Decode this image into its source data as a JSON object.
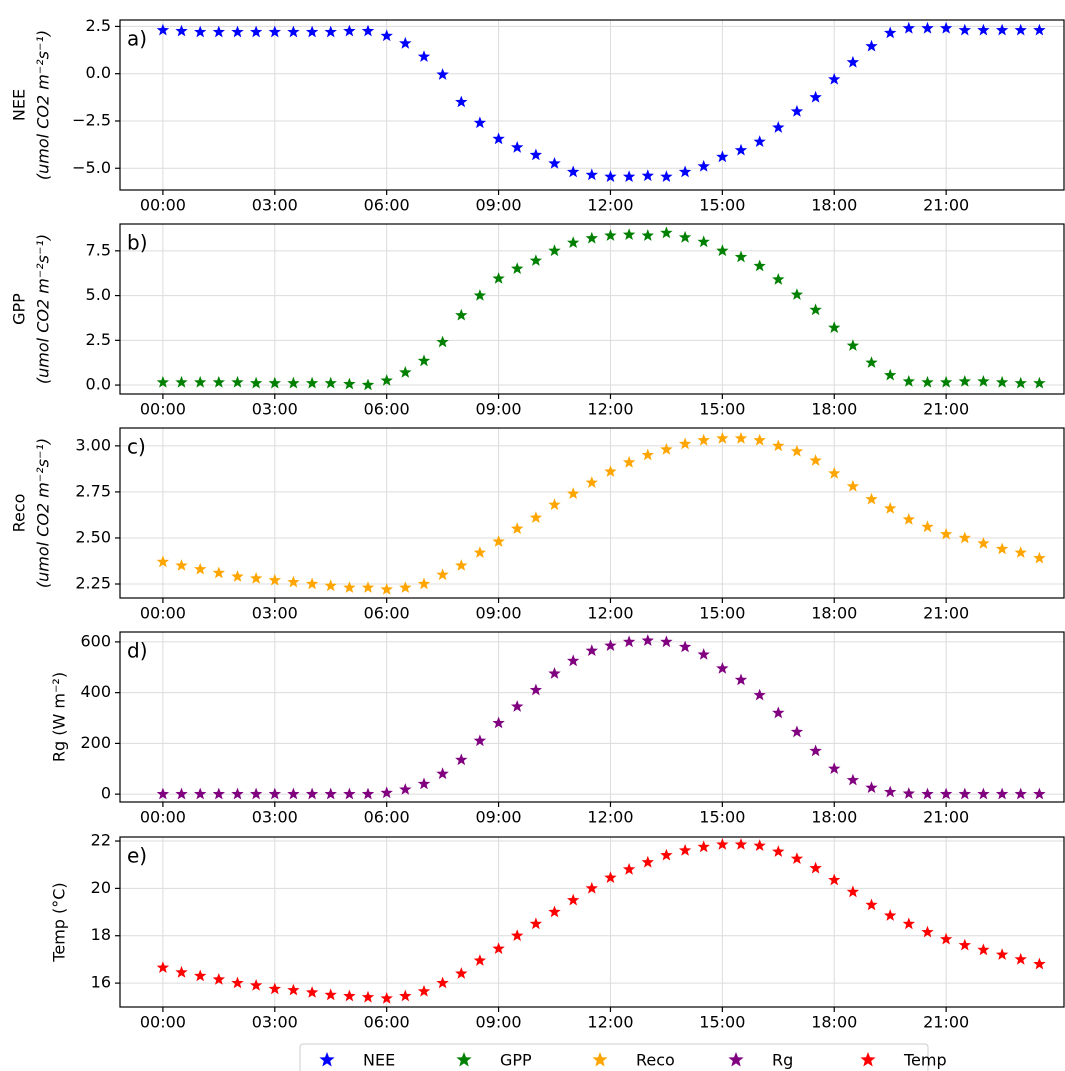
{
  "chart_data": [
    {
      "type": "scatter",
      "annotation": "a)",
      "ylabel": [
        "NEE",
        "(umol CO2 m⁻²s⁻¹)"
      ],
      "x": [
        0,
        0.5,
        1,
        1.5,
        2,
        2.5,
        3,
        3.5,
        4,
        4.5,
        5,
        5.5,
        6,
        6.5,
        7,
        7.5,
        8,
        8.5,
        9,
        9.5,
        10,
        10.5,
        11,
        11.5,
        12,
        12.5,
        13,
        13.5,
        14,
        14.5,
        15,
        15.5,
        16,
        16.5,
        17,
        17.5,
        18,
        18.5,
        19,
        19.5,
        20,
        20.5,
        21,
        21.5,
        22,
        22.5,
        23,
        23.5
      ],
      "series": [
        {
          "name": "NEE",
          "color": "#0000ff",
          "values": [
            2.3,
            2.25,
            2.2,
            2.2,
            2.2,
            2.2,
            2.2,
            2.2,
            2.2,
            2.2,
            2.25,
            2.25,
            2.0,
            1.6,
            0.9,
            -0.05,
            -1.5,
            -2.6,
            -3.45,
            -3.9,
            -4.3,
            -4.75,
            -5.2,
            -5.35,
            -5.45,
            -5.45,
            -5.4,
            -5.45,
            -5.2,
            -4.9,
            -4.4,
            -4.05,
            -3.6,
            -2.85,
            -2.0,
            -1.25,
            -0.3,
            0.6,
            1.45,
            2.15,
            2.4,
            2.4,
            2.4,
            2.3,
            2.3,
            2.3,
            2.3,
            2.3
          ]
        }
      ],
      "xlim": [
        -1.15,
        24.16
      ],
      "xticks": [
        {
          "value": 0,
          "label": "00:00"
        },
        {
          "value": 3,
          "label": "03:00"
        },
        {
          "value": 6,
          "label": "06:00"
        },
        {
          "value": 9,
          "label": "09:00"
        },
        {
          "value": 12,
          "label": "12:00"
        },
        {
          "value": 15,
          "label": "15:00"
        },
        {
          "value": 18,
          "label": "18:00"
        },
        {
          "value": 21,
          "label": "21:00"
        }
      ],
      "ylim": [
        -6.15,
        2.84
      ],
      "yticks": [
        2.5,
        {
          "value": 0,
          "label": "0.0"
        },
        {
          "value": -2.5,
          "label": "−2.5"
        },
        {
          "value": -5,
          "label": "−5.0"
        }
      ],
      "grid": true
    },
    {
      "type": "scatter",
      "annotation": "b)",
      "ylabel": [
        "GPP",
        "(umol CO2 m⁻²s⁻¹)"
      ],
      "x": [
        0,
        0.5,
        1,
        1.5,
        2,
        2.5,
        3,
        3.5,
        4,
        4.5,
        5,
        5.5,
        6,
        6.5,
        7,
        7.5,
        8,
        8.5,
        9,
        9.5,
        10,
        10.5,
        11,
        11.5,
        12,
        12.5,
        13,
        13.5,
        14,
        14.5,
        15,
        15.5,
        16,
        16.5,
        17,
        17.5,
        18,
        18.5,
        19,
        19.5,
        20,
        20.5,
        21,
        21.5,
        22,
        22.5,
        23,
        23.5
      ],
      "series": [
        {
          "name": "GPP",
          "color": "#008000",
          "values": [
            0.15,
            0.15,
            0.15,
            0.15,
            0.15,
            0.1,
            0.1,
            0.1,
            0.1,
            0.1,
            0.05,
            0.0,
            0.25,
            0.7,
            1.35,
            2.4,
            3.9,
            5.0,
            5.95,
            6.5,
            6.95,
            7.5,
            7.95,
            8.2,
            8.35,
            8.4,
            8.35,
            8.5,
            8.25,
            8.0,
            7.5,
            7.15,
            6.65,
            5.9,
            5.05,
            4.2,
            3.2,
            2.2,
            1.25,
            0.55,
            0.2,
            0.15,
            0.15,
            0.2,
            0.2,
            0.15,
            0.1,
            0.1
          ]
        }
      ],
      "xlim": [
        -1.15,
        24.16
      ],
      "xticks": [
        {
          "value": 0,
          "label": "00:00"
        },
        {
          "value": 3,
          "label": "03:00"
        },
        {
          "value": 6,
          "label": "06:00"
        },
        {
          "value": 9,
          "label": "09:00"
        },
        {
          "value": 12,
          "label": "12:00"
        },
        {
          "value": 15,
          "label": "15:00"
        },
        {
          "value": 18,
          "label": "18:00"
        },
        {
          "value": 21,
          "label": "21:00"
        }
      ],
      "ylim": [
        -0.5,
        9.0
      ],
      "yticks": [
        {
          "value": 0,
          "label": "0.0"
        },
        2.5,
        {
          "value": 5,
          "label": "5.0"
        },
        7.5
      ],
      "grid": true
    },
    {
      "type": "scatter",
      "annotation": "c)",
      "ylabel": [
        "Reco",
        "(umol CO2 m⁻²s⁻¹)"
      ],
      "x": [
        0,
        0.5,
        1,
        1.5,
        2,
        2.5,
        3,
        3.5,
        4,
        4.5,
        5,
        5.5,
        6,
        6.5,
        7,
        7.5,
        8,
        8.5,
        9,
        9.5,
        10,
        10.5,
        11,
        11.5,
        12,
        12.5,
        13,
        13.5,
        14,
        14.5,
        15,
        15.5,
        16,
        16.5,
        17,
        17.5,
        18,
        18.5,
        19,
        19.5,
        20,
        20.5,
        21,
        21.5,
        22,
        22.5,
        23,
        23.5
      ],
      "series": [
        {
          "name": "Reco",
          "color": "#ffa500",
          "values": [
            2.37,
            2.35,
            2.33,
            2.31,
            2.29,
            2.28,
            2.27,
            2.26,
            2.25,
            2.24,
            2.23,
            2.23,
            2.22,
            2.23,
            2.25,
            2.3,
            2.35,
            2.42,
            2.48,
            2.55,
            2.61,
            2.68,
            2.74,
            2.8,
            2.86,
            2.91,
            2.95,
            2.98,
            3.01,
            3.03,
            3.04,
            3.04,
            3.03,
            3.0,
            2.97,
            2.92,
            2.85,
            2.78,
            2.71,
            2.66,
            2.6,
            2.56,
            2.52,
            2.5,
            2.47,
            2.44,
            2.42,
            2.39
          ]
        }
      ],
      "xlim": [
        -1.15,
        24.16
      ],
      "xticks": [
        {
          "value": 0,
          "label": "00:00"
        },
        {
          "value": 3,
          "label": "03:00"
        },
        {
          "value": 6,
          "label": "06:00"
        },
        {
          "value": 9,
          "label": "09:00"
        },
        {
          "value": 12,
          "label": "12:00"
        },
        {
          "value": 15,
          "label": "15:00"
        },
        {
          "value": 18,
          "label": "18:00"
        },
        {
          "value": 21,
          "label": "21:00"
        }
      ],
      "ylim": [
        2.174,
        3.097
      ],
      "yticks": [
        2.25,
        {
          "value": 2.5,
          "label": "2.50"
        },
        2.75,
        {
          "value": 3,
          "label": "3.00"
        }
      ],
      "grid": true
    },
    {
      "type": "scatter",
      "annotation": "d)",
      "ylabel": [
        "Rg (W m⁻²)"
      ],
      "x": [
        0,
        0.5,
        1,
        1.5,
        2,
        2.5,
        3,
        3.5,
        4,
        4.5,
        5,
        5.5,
        6,
        6.5,
        7,
        7.5,
        8,
        8.5,
        9,
        9.5,
        10,
        10.5,
        11,
        11.5,
        12,
        12.5,
        13,
        13.5,
        14,
        14.5,
        15,
        15.5,
        16,
        16.5,
        17,
        17.5,
        18,
        18.5,
        19,
        19.5,
        20,
        20.5,
        21,
        21.5,
        22,
        22.5,
        23,
        23.5
      ],
      "series": [
        {
          "name": "Rg",
          "color": "#800080",
          "values": [
            0,
            0,
            0,
            0,
            0,
            0,
            0,
            0,
            0,
            0,
            0,
            0,
            5,
            18,
            40,
            80,
            135,
            210,
            280,
            345,
            410,
            475,
            525,
            565,
            585,
            600,
            605,
            600,
            580,
            550,
            495,
            450,
            390,
            320,
            245,
            170,
            100,
            55,
            25,
            8,
            2,
            0,
            0,
            0,
            0,
            0,
            0,
            0
          ]
        }
      ],
      "xlim": [
        -1.15,
        24.16
      ],
      "xticks": [
        {
          "value": 0,
          "label": "00:00"
        },
        {
          "value": 3,
          "label": "03:00"
        },
        {
          "value": 6,
          "label": "06:00"
        },
        {
          "value": 9,
          "label": "09:00"
        },
        {
          "value": 12,
          "label": "12:00"
        },
        {
          "value": 15,
          "label": "15:00"
        },
        {
          "value": 18,
          "label": "18:00"
        },
        {
          "value": 21,
          "label": "21:00"
        }
      ],
      "ylim": [
        -31,
        639
      ],
      "yticks": [
        0,
        200,
        400,
        600
      ],
      "grid": true
    },
    {
      "type": "scatter",
      "annotation": "e)",
      "ylabel": [
        "Temp (°C)"
      ],
      "x": [
        0,
        0.5,
        1,
        1.5,
        2,
        2.5,
        3,
        3.5,
        4,
        4.5,
        5,
        5.5,
        6,
        6.5,
        7,
        7.5,
        8,
        8.5,
        9,
        9.5,
        10,
        10.5,
        11,
        11.5,
        12,
        12.5,
        13,
        13.5,
        14,
        14.5,
        15,
        15.5,
        16,
        16.5,
        17,
        17.5,
        18,
        18.5,
        19,
        19.5,
        20,
        20.5,
        21,
        21.5,
        22,
        22.5,
        23,
        23.5
      ],
      "series": [
        {
          "name": "Temp",
          "color": "#ff0000",
          "values": [
            16.65,
            16.45,
            16.3,
            16.15,
            16.0,
            15.9,
            15.75,
            15.7,
            15.6,
            15.5,
            15.45,
            15.4,
            15.35,
            15.45,
            15.65,
            16.0,
            16.4,
            16.95,
            17.45,
            18.0,
            18.5,
            19.0,
            19.5,
            20.0,
            20.45,
            20.8,
            21.1,
            21.4,
            21.6,
            21.75,
            21.85,
            21.85,
            21.8,
            21.55,
            21.25,
            20.85,
            20.35,
            19.85,
            19.3,
            18.85,
            18.5,
            18.15,
            17.85,
            17.6,
            17.4,
            17.2,
            17.0,
            16.8
          ]
        }
      ],
      "xlim": [
        -1.15,
        24.16
      ],
      "xticks": [
        {
          "value": 0,
          "label": "00:00"
        },
        {
          "value": 3,
          "label": "03:00"
        },
        {
          "value": 6,
          "label": "06:00"
        },
        {
          "value": 9,
          "label": "09:00"
        },
        {
          "value": 12,
          "label": "12:00"
        },
        {
          "value": 15,
          "label": "15:00"
        },
        {
          "value": 18,
          "label": "18:00"
        },
        {
          "value": 21,
          "label": "21:00"
        }
      ],
      "ylim": [
        14.99,
        22.17
      ],
      "yticks": [
        16,
        18,
        20,
        22
      ],
      "grid": true
    }
  ]
}
